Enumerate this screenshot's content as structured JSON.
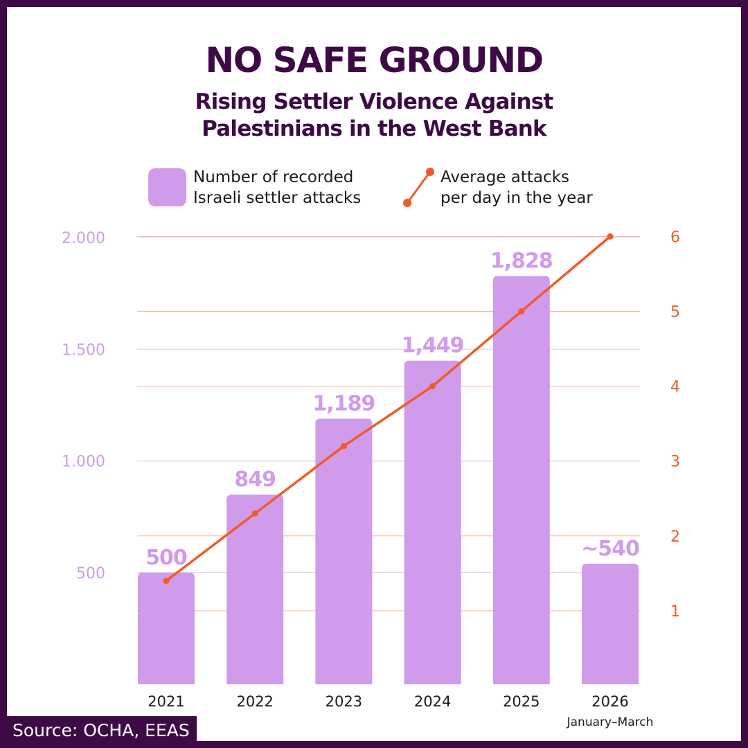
{
  "title": "NO SAFE GROUND",
  "subtitle_lines": [
    "Rising Settler Violence Against",
    "Palestinians in the West Bank"
  ],
  "source": "Source: OCHA, EEAS",
  "colors": {
    "frame": "#3d0a46",
    "bar": "#d09bea",
    "line": "#f05a28",
    "left_axis_text": "#c8a0e0",
    "right_axis_text": "#f05a28"
  },
  "chart_data": {
    "type": "bar",
    "categories": [
      "2021",
      "2022",
      "2023",
      "2024",
      "2025",
      "2026"
    ],
    "category_note": {
      "2026": "January–March"
    },
    "series": [
      {
        "name": "Number of recorded Israeli settler attacks",
        "name_lines": [
          "Number of recorded",
          "Israeli settler attacks"
        ],
        "type": "bar",
        "axis": "left",
        "values": [
          500,
          849,
          1189,
          1449,
          1828,
          540
        ],
        "data_labels": [
          "500",
          "849",
          "1,189",
          "1,449",
          "1,828",
          "~540"
        ]
      },
      {
        "name": "Average attacks per day in the year",
        "name_lines": [
          "Average attacks",
          "per day in the year"
        ],
        "type": "line",
        "axis": "right",
        "values": [
          1.4,
          2.3,
          3.2,
          4.0,
          5.0,
          6.0
        ]
      }
    ],
    "y_left": {
      "ticks": [
        500,
        1000,
        1500,
        2000
      ],
      "tick_labels": [
        "500",
        "1.000",
        "1.500",
        "2.000"
      ],
      "range": [
        0,
        2000
      ]
    },
    "y_right": {
      "ticks": [
        1,
        2,
        3,
        4,
        5,
        6
      ],
      "tick_labels": [
        "1",
        "2",
        "3",
        "4",
        "5",
        "6"
      ],
      "range": [
        0,
        6
      ]
    },
    "grid": true,
    "legend_position": "top"
  }
}
